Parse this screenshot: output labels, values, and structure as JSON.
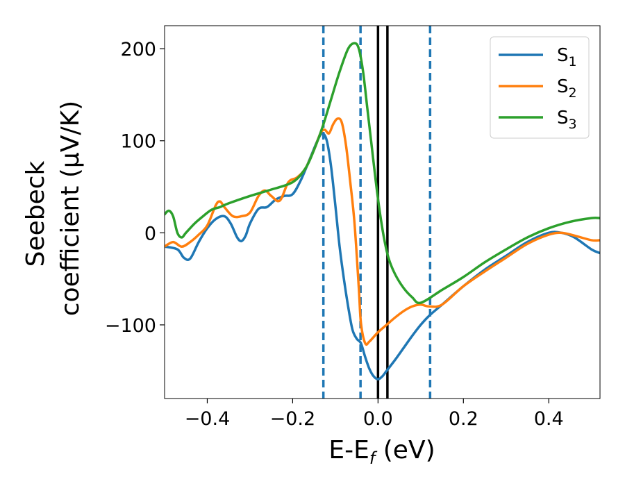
{
  "chart_data": {
    "type": "line",
    "xlabel_main": "E-E",
    "xlabel_sub": "f",
    "xlabel_unit": " (eV)",
    "ylabel_line1": "Seebeck",
    "ylabel_line2": "coefficient  (μV/K)",
    "xlim": [
      -0.5,
      0.52
    ],
    "ylim": [
      -180,
      225
    ],
    "xticks": [
      -0.4,
      -0.2,
      0.0,
      0.2,
      0.4
    ],
    "xtick_labels": [
      "−0.4",
      "−0.2",
      "0.0",
      "0.2",
      "0.4"
    ],
    "yticks": [
      -100,
      0,
      100,
      200
    ],
    "ytick_labels": [
      "−100",
      "0",
      "100",
      "200"
    ],
    "grid": false,
    "legend_position": "top-right",
    "dashed_vlines": [
      -0.128,
      -0.041,
      0.122
    ],
    "dashed_vline_color": "#1f77b4",
    "solid_vlines": [
      0.0,
      0.022
    ],
    "solid_vline_color": "#000000",
    "series": [
      {
        "name": "S",
        "sub": "1",
        "color": "#1f77b4",
        "x": [
          -0.5,
          -0.47,
          -0.455,
          -0.44,
          -0.42,
          -0.4,
          -0.38,
          -0.36,
          -0.345,
          -0.33,
          -0.32,
          -0.31,
          -0.3,
          -0.28,
          -0.26,
          -0.24,
          -0.22,
          -0.2,
          -0.18,
          -0.16,
          -0.14,
          -0.13,
          -0.12,
          -0.11,
          -0.1,
          -0.09,
          -0.08,
          -0.07,
          -0.06,
          -0.05,
          -0.04,
          -0.03,
          -0.02,
          -0.01,
          0.0,
          0.01,
          0.02,
          0.04,
          0.06,
          0.08,
          0.1,
          0.12,
          0.15,
          0.2,
          0.25,
          0.3,
          0.35,
          0.4,
          0.43,
          0.46,
          0.5,
          0.52
        ],
        "y": [
          -15,
          -18,
          -27,
          -28,
          -10,
          5,
          15,
          18,
          10,
          -5,
          -9,
          -3,
          10,
          26,
          28,
          36,
          40,
          42,
          58,
          80,
          102,
          108,
          100,
          72,
          30,
          -15,
          -50,
          -80,
          -105,
          -115,
          -120,
          -135,
          -148,
          -156,
          -159,
          -156,
          -150,
          -138,
          -125,
          -112,
          -100,
          -90,
          -78,
          -58,
          -40,
          -25,
          -10,
          0,
          0,
          -5,
          -18,
          -22
        ]
      },
      {
        "name": "S",
        "sub": "2",
        "color": "#ff7f0e",
        "x": [
          -0.5,
          -0.48,
          -0.46,
          -0.44,
          -0.42,
          -0.4,
          -0.38,
          -0.37,
          -0.36,
          -0.34,
          -0.32,
          -0.3,
          -0.28,
          -0.265,
          -0.25,
          -0.23,
          -0.21,
          -0.19,
          -0.17,
          -0.15,
          -0.135,
          -0.125,
          -0.115,
          -0.105,
          -0.095,
          -0.085,
          -0.075,
          -0.065,
          -0.055,
          -0.045,
          -0.04,
          -0.03,
          -0.02,
          0.0,
          0.02,
          0.04,
          0.06,
          0.08,
          0.1,
          0.12,
          0.15,
          0.2,
          0.25,
          0.3,
          0.35,
          0.4,
          0.43,
          0.46,
          0.5,
          0.52
        ],
        "y": [
          -15,
          -10,
          -15,
          -10,
          -2,
          8,
          30,
          34,
          28,
          18,
          18,
          22,
          40,
          46,
          40,
          35,
          55,
          60,
          70,
          90,
          108,
          112,
          108,
          118,
          124,
          120,
          95,
          55,
          10,
          -60,
          -98,
          -120,
          -118,
          -108,
          -100,
          -92,
          -85,
          -80,
          -78,
          -80,
          -78,
          -58,
          -42,
          -27,
          -12,
          -2,
          0,
          -3,
          -8,
          -8
        ]
      },
      {
        "name": "S",
        "sub": "3",
        "color": "#2ca02c",
        "x": [
          -0.5,
          -0.49,
          -0.48,
          -0.47,
          -0.46,
          -0.45,
          -0.43,
          -0.41,
          -0.39,
          -0.37,
          -0.35,
          -0.3,
          -0.25,
          -0.2,
          -0.17,
          -0.15,
          -0.13,
          -0.11,
          -0.09,
          -0.07,
          -0.055,
          -0.045,
          -0.035,
          -0.025,
          -0.015,
          -0.005,
          0.005,
          0.015,
          0.025,
          0.04,
          0.06,
          0.08,
          0.1,
          0.15,
          0.2,
          0.25,
          0.3,
          0.35,
          0.4,
          0.45,
          0.5,
          0.52
        ],
        "y": [
          20,
          24,
          18,
          0,
          -5,
          0,
          10,
          18,
          25,
          28,
          32,
          40,
          47,
          55,
          70,
          90,
          115,
          145,
          175,
          200,
          206,
          200,
          175,
          135,
          95,
          55,
          20,
          -8,
          -28,
          -45,
          -60,
          -70,
          -76,
          -62,
          -48,
          -32,
          -18,
          -5,
          5,
          12,
          16,
          16
        ]
      }
    ]
  }
}
